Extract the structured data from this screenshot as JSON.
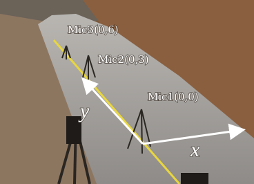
{
  "labels": {
    "mic3": "Mic3(0,6)",
    "mic2": "Mic2(0,3)",
    "mic1": "Mic1(0,0)"
  },
  "axes": {
    "x": "x",
    "y": "y"
  }
}
